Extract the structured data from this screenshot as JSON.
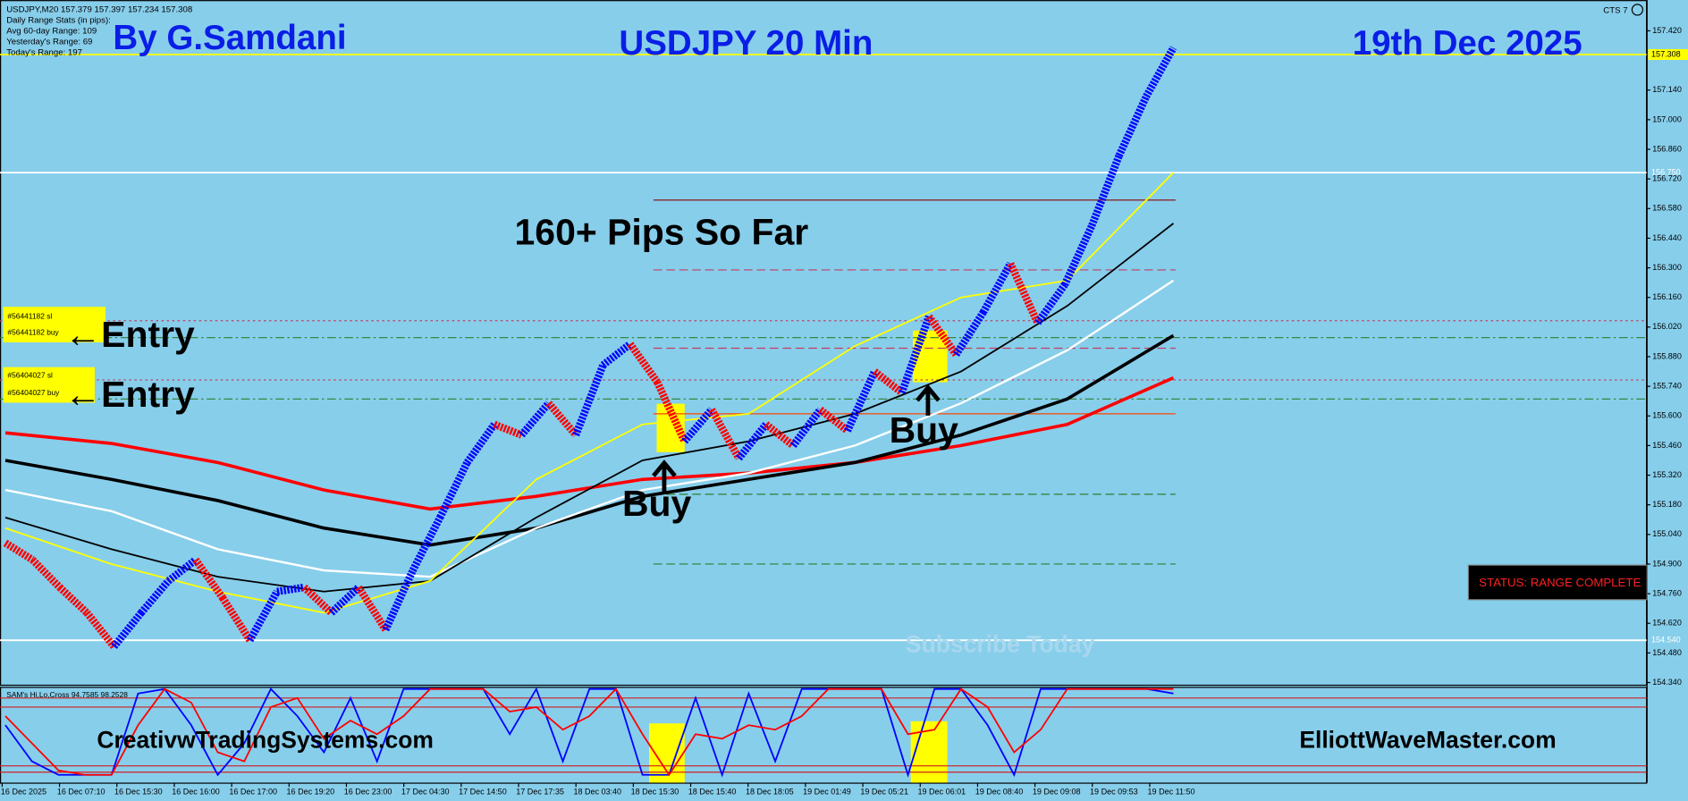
{
  "chart_data": {
    "type": "renko",
    "symbol_info": "USDJPY,M20  157.379 157.397 157.234 157.308",
    "stats": [
      "Daily Range Stats (in pips):",
      "Avg 60-day Range: 109",
      "Yesterday's Range: 69",
      "Today's Range: 197"
    ],
    "indicator_name": "CTS 7",
    "title_left": "By G.Samdani",
    "title": "USDJPY 20 Min",
    "title_right": "19th Dec 2025",
    "annotation": "160+ Pips So Far",
    "entries": [
      {
        "sl": "#56441182 sl",
        "buy": "#56441182 buy",
        "label": "←Entry"
      },
      {
        "sl": "#56404027 sl",
        "buy": "#56404027 buy",
        "label": "←Entry"
      }
    ],
    "buy_labels": [
      "Buy",
      "Buy"
    ],
    "status": "STATUS: RANGE COMPLETE",
    "watermark": "Subscribe Today",
    "footer_left": "CreativwTradingSystems.com",
    "footer_right": "ElliottWaveMaster.com",
    "x_labels": [
      "16 Dec 2025",
      "16 Dec 07:10",
      "16 Dec 15:30",
      "16 Dec 16:00",
      "16 Dec 17:00",
      "16 Dec 19:20",
      "16 Dec 23:00",
      "17 Dec 04:30",
      "17 Dec 14:50",
      "17 Dec 17:35",
      "18 Dec 03:40",
      "18 Dec 15:30",
      "18 Dec 15:40",
      "18 Dec 18:05",
      "19 Dec 01:49",
      "19 Dec 05:21",
      "19 Dec 06:01",
      "19 Dec 08:40",
      "19 Dec 09:08",
      "19 Dec 09:53",
      "19 Dec 11:50"
    ],
    "ylim": [
      154.33,
      157.55
    ],
    "yticks": [
      {
        "value": 157.42,
        "label": "157.420"
      },
      {
        "value": 157.14,
        "label": "157.140"
      },
      {
        "value": 157.0,
        "label": "157.000"
      },
      {
        "value": 156.86,
        "label": "156.860"
      },
      {
        "value": 156.72,
        "label": "156.720"
      },
      {
        "value": 156.58,
        "label": "156.580"
      },
      {
        "value": 156.44,
        "label": "156.440"
      },
      {
        "value": 156.3,
        "label": "156.300"
      },
      {
        "value": 156.16,
        "label": "156.160"
      },
      {
        "value": 156.02,
        "label": "156.020"
      },
      {
        "value": 155.88,
        "label": "155.880"
      },
      {
        "value": 155.74,
        "label": "155.740"
      },
      {
        "value": 155.6,
        "label": "155.600"
      },
      {
        "value": 155.46,
        "label": "155.460"
      },
      {
        "value": 155.32,
        "label": "155.320"
      },
      {
        "value": 155.18,
        "label": "155.180"
      },
      {
        "value": 155.04,
        "label": "155.040"
      },
      {
        "value": 154.9,
        "label": "154.900"
      },
      {
        "value": 154.76,
        "label": "154.760"
      },
      {
        "value": 154.62,
        "label": "154.620"
      },
      {
        "value": 154.48,
        "label": "154.480"
      },
      {
        "value": 154.34,
        "label": "154.340"
      }
    ],
    "price_tags": [
      {
        "value": 157.308,
        "label": "157.308",
        "color": "#ffff00",
        "text_color": "#000000"
      },
      {
        "value": 156.75,
        "label": "156.750",
        "color": "#ffffff",
        "text_color": "#ffffff"
      },
      {
        "value": 154.54,
        "label": "154.540",
        "color": "#ffffff",
        "text_color": "#ffffff"
      }
    ],
    "price": {
      "up_color": "#0000ff",
      "down_color": "#ff0000",
      "values": [
        155.0,
        154.92,
        154.79,
        154.67,
        154.51,
        154.67,
        154.82,
        154.92,
        154.74,
        154.54,
        154.77,
        154.79,
        154.67,
        154.79,
        154.59,
        154.87,
        155.12,
        155.38,
        155.56,
        155.51,
        155.66,
        155.51,
        155.84,
        155.94,
        155.76,
        155.48,
        155.63,
        155.4,
        155.56,
        155.46,
        155.63,
        155.53,
        155.81,
        155.71,
        156.07,
        155.89,
        156.09,
        156.32,
        156.04,
        156.22,
        156.5,
        156.83,
        157.11,
        157.34
      ]
    },
    "moving_averages": [
      {
        "color": "#ff0000",
        "width": 3,
        "values": [
          155.52,
          155.47,
          155.38,
          155.25,
          155.16,
          155.22,
          155.3,
          155.33,
          155.38,
          155.46,
          155.56,
          155.78
        ]
      },
      {
        "color": "#000000",
        "width": 3,
        "values": [
          155.39,
          155.3,
          155.2,
          155.07,
          154.99,
          155.07,
          155.22,
          155.3,
          155.38,
          155.51,
          155.68,
          155.98
        ]
      },
      {
        "color": "#ffffff",
        "width": 2,
        "values": [
          155.25,
          155.15,
          154.97,
          154.87,
          154.84,
          155.07,
          155.25,
          155.33,
          155.46,
          155.66,
          155.91,
          156.24
        ]
      },
      {
        "color": "#000000",
        "width": 1.5,
        "values": [
          155.12,
          154.97,
          154.84,
          154.77,
          154.82,
          155.12,
          155.39,
          155.48,
          155.61,
          155.81,
          156.12,
          156.51
        ]
      },
      {
        "color": "#ffff00",
        "width": 1.5,
        "values": [
          155.07,
          154.9,
          154.77,
          154.67,
          154.82,
          155.3,
          155.56,
          155.61,
          155.93,
          156.16,
          156.24,
          156.75
        ]
      }
    ],
    "levels": [
      {
        "value": 156.62,
        "color": "#8b0000",
        "style": "solid",
        "extent": "right"
      },
      {
        "value": 156.29,
        "color": "#c04060",
        "style": "dash",
        "extent": "right"
      },
      {
        "value": 156.05,
        "color": "#c04060",
        "style": "dot",
        "extent": "full"
      },
      {
        "value": 155.97,
        "color": "#2e7d32",
        "style": "dashdot",
        "extent": "full"
      },
      {
        "value": 155.92,
        "color": "#c04060",
        "style": "dash",
        "extent": "right"
      },
      {
        "value": 155.77,
        "color": "#c04060",
        "style": "dot",
        "extent": "full"
      },
      {
        "value": 155.68,
        "color": "#2e7d32",
        "style": "dashdot",
        "extent": "full"
      },
      {
        "value": 155.61,
        "color": "#ff4500",
        "style": "solid",
        "extent": "right"
      },
      {
        "value": 155.23,
        "color": "#2e7d32",
        "style": "dash",
        "extent": "right"
      },
      {
        "value": 154.9,
        "color": "#2e7d32",
        "style": "dash",
        "extent": "right"
      },
      {
        "value": 154.54,
        "color": "#2e7d32",
        "style": "solid",
        "extent": "right"
      }
    ],
    "oscillator": {
      "title": "SAM's Hi,Lo,Cross 94.7585 98.2528",
      "ylim": [
        0,
        100
      ],
      "levels": [
        90,
        80,
        15,
        8
      ],
      "series": [
        {
          "color": "#0000ff",
          "values": [
            60,
            20,
            5,
            5,
            5,
            95,
            100,
            60,
            5,
            40,
            100,
            70,
            30,
            90,
            20,
            100,
            100,
            100,
            100,
            50,
            100,
            20,
            100,
            100,
            5,
            5,
            90,
            5,
            95,
            20,
            100,
            100,
            100,
            100,
            5,
            100,
            100,
            60,
            5,
            100,
            100,
            100,
            100,
            100,
            95
          ]
        },
        {
          "color": "#ff0000",
          "values": [
            70,
            40,
            10,
            5,
            5,
            60,
            100,
            85,
            30,
            20,
            80,
            90,
            45,
            65,
            50,
            70,
            100,
            100,
            100,
            75,
            80,
            55,
            70,
            100,
            50,
            5,
            50,
            45,
            60,
            55,
            70,
            100,
            100,
            100,
            50,
            55,
            100,
            80,
            30,
            55,
            100,
            100,
            100,
            100,
            100
          ]
        }
      ]
    }
  }
}
